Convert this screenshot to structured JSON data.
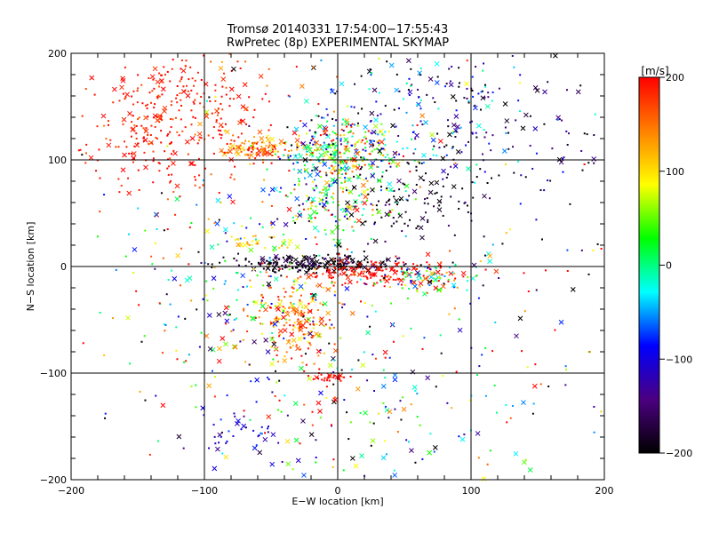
{
  "chart_data": {
    "type": "scatter",
    "title": "Tromsø 20140331 17:54:00−17:55:43",
    "subtitle": "RwPretec (8p) EXPERIMENTAL SKYMAP",
    "xlabel": "E−W location [km]",
    "ylabel": "N−S location [km]",
    "xlim": [
      -200,
      200
    ],
    "ylim": [
      -200,
      200
    ],
    "x_ticks": [
      -200,
      -100,
      0,
      100,
      200
    ],
    "y_ticks": [
      -200,
      -100,
      0,
      100,
      200
    ],
    "x_tick_labels": [
      "−200",
      "−100",
      "0",
      "100",
      "200"
    ],
    "y_tick_labels": [
      "−200",
      "−100",
      "0",
      "100",
      "200"
    ],
    "grid": true,
    "marker_types": [
      "dot",
      "x"
    ],
    "colorbar": {
      "label": "[m/s]",
      "range": [
        -200,
        200
      ],
      "ticks": [
        200,
        100,
        0,
        -100,
        -200
      ],
      "tick_labels": [
        "200",
        "100",
        "0",
        "−100",
        "−200"
      ],
      "colors": [
        "#000000",
        "#4b0080",
        "#0000ff",
        "#00ffff",
        "#00ff00",
        "#ffff00",
        "#ff8000",
        "#ff0000"
      ]
    },
    "clusters": [
      {
        "center": [
          -110,
          150
        ],
        "spread": [
          35,
          35
        ],
        "count": 260,
        "velocity": 190,
        "vspread": 20
      },
      {
        "center": [
          -150,
          110
        ],
        "spread": [
          25,
          30
        ],
        "count": 90,
        "velocity": 190,
        "vspread": 15
      },
      {
        "center": [
          -60,
          110
        ],
        "spread": [
          15,
          6
        ],
        "count": 120,
        "velocity": 150,
        "vspread": 40
      },
      {
        "center": [
          0,
          80
        ],
        "spread": [
          22,
          30
        ],
        "count": 320,
        "velocity": 20,
        "vspread": 90
      },
      {
        "center": [
          5,
          115
        ],
        "spread": [
          20,
          15
        ],
        "count": 160,
        "velocity": 80,
        "vspread": 110
      },
      {
        "center": [
          60,
          140
        ],
        "spread": [
          45,
          35
        ],
        "count": 200,
        "velocity": -120,
        "vspread": 80
      },
      {
        "center": [
          140,
          120
        ],
        "spread": [
          40,
          35
        ],
        "count": 80,
        "velocity": -170,
        "vspread": 40
      },
      {
        "center": [
          50,
          60
        ],
        "spread": [
          30,
          20
        ],
        "count": 110,
        "velocity": -185,
        "vspread": 25
      },
      {
        "center": [
          -20,
          2
        ],
        "spread": [
          30,
          4
        ],
        "count": 220,
        "velocity": -190,
        "vspread": 25
      },
      {
        "center": [
          25,
          -5
        ],
        "spread": [
          30,
          6
        ],
        "count": 150,
        "velocity": 195,
        "vspread": 15
      },
      {
        "center": [
          70,
          -10
        ],
        "spread": [
          20,
          8
        ],
        "count": 110,
        "velocity": 40,
        "vspread": 130
      },
      {
        "center": [
          -30,
          -50
        ],
        "spread": [
          15,
          22
        ],
        "count": 160,
        "velocity": 140,
        "vspread": 40
      },
      {
        "center": [
          -60,
          -30
        ],
        "spread": [
          50,
          45
        ],
        "count": 260,
        "velocity": 20,
        "vspread": 140
      },
      {
        "center": [
          -70,
          -155
        ],
        "spread": [
          18,
          12
        ],
        "count": 40,
        "velocity": -110,
        "vspread": 20
      },
      {
        "center": [
          40,
          -140
        ],
        "spread": [
          70,
          40
        ],
        "count": 140,
        "velocity": 0,
        "vspread": 140
      },
      {
        "center": [
          -8,
          -104
        ],
        "spread": [
          6,
          2
        ],
        "count": 30,
        "velocity": 200,
        "vspread": 5
      },
      {
        "center": [
          -60,
          23
        ],
        "spread": [
          15,
          4
        ],
        "count": 30,
        "velocity": 100,
        "vspread": 30
      },
      {
        "center": [
          10,
          20
        ],
        "spread": [
          140,
          160
        ],
        "count": 320,
        "velocity": 0,
        "vspread": 200
      }
    ]
  }
}
